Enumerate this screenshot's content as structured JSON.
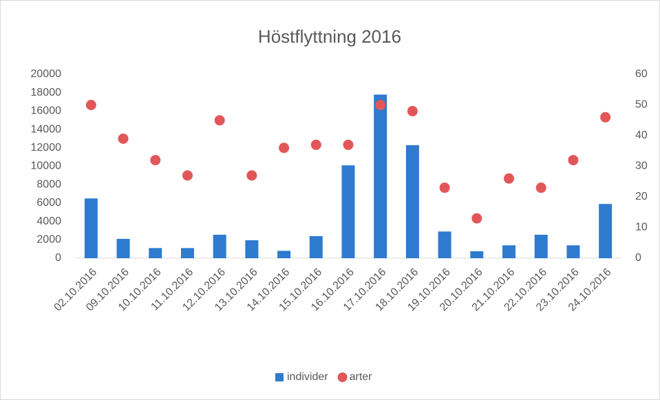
{
  "chart_data": {
    "type": "bar",
    "title": "Höstflyttning 2016",
    "categories": [
      "02.10.2016",
      "09.10.2016",
      "10.10.2016",
      "11.10.2016",
      "12.10.2016",
      "13.10.2016",
      "14.10.2016",
      "15.10.2016",
      "16.10.2016",
      "17.10.2016",
      "18.10.2016",
      "19.10.2016",
      "20.10.2016",
      "21.10.2016",
      "22.10.2016",
      "23.10.2016",
      "24.10.2016"
    ],
    "series": [
      {
        "name": "individer",
        "type": "bar",
        "color": "#2e7bcf",
        "values": [
          6500,
          2100,
          1100,
          1100,
          2550,
          1950,
          800,
          2400,
          10100,
          17800,
          12300,
          2900,
          750,
          1400,
          2550,
          1400,
          5900
        ]
      },
      {
        "name": "arter",
        "type": "scatter",
        "axis": "y2",
        "color": "#e15759",
        "values": [
          50,
          39,
          32,
          27,
          45,
          27,
          36,
          37,
          37,
          50,
          48,
          23,
          13,
          26,
          23,
          32,
          46
        ]
      }
    ],
    "ylim": [
      0,
      20000
    ],
    "yticks": [
      0,
      2000,
      4000,
      6000,
      8000,
      10000,
      12000,
      14000,
      16000,
      18000,
      20000
    ],
    "y2lim": [
      0,
      60
    ],
    "y2ticks": [
      0,
      10,
      20,
      30,
      40,
      50,
      60
    ],
    "grid": false,
    "legend": "bottom"
  }
}
